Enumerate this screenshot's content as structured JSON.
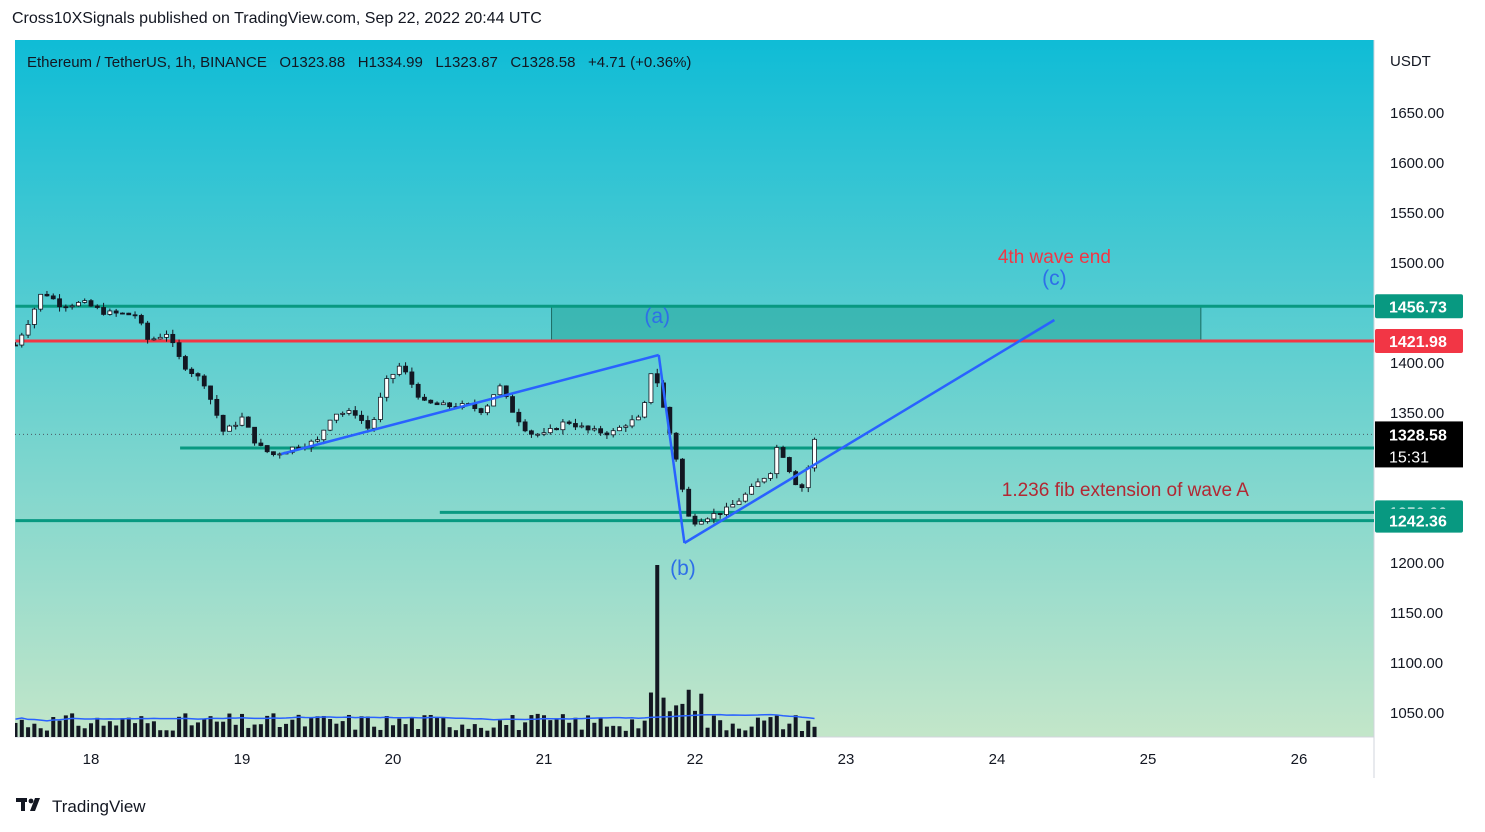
{
  "header": {
    "caption": "Cross10XSignals published on TradingView.com, Sep 22, 2022 20:44 UTC"
  },
  "legend": {
    "symbol": "Ethereum / TetherUS, 1h, BINANCE",
    "open": "O1323.88",
    "high": "H1334.99",
    "low": "L1323.87",
    "close": "C1328.58",
    "change": "+4.71 (+0.36%)"
  },
  "footer": {
    "brand": "TradingView",
    "logo_icon": "tradingview-logo-icon"
  },
  "colors": {
    "bg_top": "#0fbcd6",
    "bg_bottom": "#c3e6c9",
    "up_candle": "#ffffff",
    "down_candle": "#131722",
    "trend_line": "#2962ff",
    "support_line": "#089981",
    "resistance_line": "#f23645",
    "box_fill": "#26a69a",
    "fib_text": "#b22833",
    "wave_text": "#2e6fe8",
    "end_text": "#f23645"
  },
  "chart_data": {
    "type": "candlestick",
    "symbol": "Ethereum / TetherUS",
    "interval": "1h",
    "exchange": "BINANCE",
    "price_axis_unit": "USDT",
    "price_ticks": [
      "1650.00",
      "1600.00",
      "1550.00",
      "1500.00",
      "1400.00",
      "1350.00",
      "1200.00",
      "1150.00",
      "1100.00",
      "1050.00"
    ],
    "time_ticks": [
      "18",
      "19",
      "20",
      "21",
      "22",
      "23",
      "24",
      "25",
      "26"
    ],
    "ylim": [
      1025,
      1690
    ],
    "x_range_days": [
      17.5,
      26.5
    ],
    "price_path": [
      [
        17.5,
        1418
      ],
      [
        17.58,
        1440
      ],
      [
        17.68,
        1472
      ],
      [
        17.8,
        1458
      ],
      [
        17.95,
        1460
      ],
      [
        18.1,
        1450
      ],
      [
        18.3,
        1448
      ],
      [
        18.38,
        1422
      ],
      [
        18.5,
        1430
      ],
      [
        18.6,
        1400
      ],
      [
        18.75,
        1380
      ],
      [
        18.88,
        1330
      ],
      [
        19.0,
        1345
      ],
      [
        19.1,
        1318
      ],
      [
        19.2,
        1308
      ],
      [
        19.35,
        1316
      ],
      [
        19.5,
        1322
      ],
      [
        19.6,
        1350
      ],
      [
        19.75,
        1350
      ],
      [
        19.85,
        1332
      ],
      [
        19.95,
        1380
      ],
      [
        20.05,
        1398
      ],
      [
        20.2,
        1360
      ],
      [
        20.35,
        1357
      ],
      [
        20.5,
        1357
      ],
      [
        20.6,
        1352
      ],
      [
        20.7,
        1378
      ],
      [
        20.8,
        1350
      ],
      [
        20.9,
        1330
      ],
      [
        21.0,
        1328
      ],
      [
        21.15,
        1342
      ],
      [
        21.3,
        1332
      ],
      [
        21.45,
        1330
      ],
      [
        21.55,
        1340
      ],
      [
        21.65,
        1345
      ],
      [
        21.72,
        1400
      ],
      [
        21.78,
        1362
      ],
      [
        21.85,
        1320
      ],
      [
        21.9,
        1290
      ],
      [
        21.93,
        1260
      ],
      [
        21.97,
        1240
      ],
      [
        22.05,
        1245
      ],
      [
        22.2,
        1252
      ],
      [
        22.35,
        1270
      ],
      [
        22.45,
        1285
      ],
      [
        22.5,
        1292
      ],
      [
        22.55,
        1320
      ],
      [
        22.6,
        1302
      ],
      [
        22.65,
        1285
      ],
      [
        22.7,
        1272
      ],
      [
        22.76,
        1300
      ],
      [
        22.8,
        1328.58
      ]
    ],
    "last_bar": {
      "open": 1323.88,
      "high": 1334.99,
      "low": 1323.87,
      "close": 1328.58,
      "change": 4.71,
      "change_pct": 0.36
    },
    "volume_profile_note": "volume bars along bottom with spike near day 21.75",
    "horizontal_levels": [
      {
        "price": 1456.73,
        "label": "1456.73",
        "kind": "support",
        "start_day": 17.5
      },
      {
        "price": 1421.98,
        "label": "1421.98",
        "kind": "resistance",
        "start_day": 17.5
      },
      {
        "price": 1315.01,
        "label": "1315.01",
        "kind": "support",
        "start_day": 18.59
      },
      {
        "price": 1250.66,
        "label": "1250.66",
        "kind": "support",
        "start_day": 20.31
      },
      {
        "price": 1242.36,
        "label": "1242.36",
        "kind": "support",
        "start_day": 17.5
      }
    ],
    "current_price_label": {
      "price": "1328.58",
      "countdown": "15:31"
    },
    "zone": {
      "from_day": 21.05,
      "to_day": 25.35,
      "price_low": 1421.98,
      "price_high": 1456.73
    },
    "wave_lines": [
      {
        "points": [
          [
            19.26,
            1309
          ],
          [
            21.76,
            1408
          ]
        ]
      },
      {
        "points": [
          [
            21.76,
            1408
          ],
          [
            21.93,
            1220
          ]
        ]
      },
      {
        "points": [
          [
            21.93,
            1220
          ],
          [
            24.38,
            1443
          ]
        ]
      }
    ],
    "annotations": [
      {
        "text": "(a)",
        "day": 21.75,
        "price": 1440,
        "color": "wave"
      },
      {
        "text": "(b)",
        "day": 21.92,
        "price": 1188,
        "color": "wave"
      },
      {
        "text": "(c)",
        "day": 24.38,
        "price": 1478,
        "color": "wave"
      },
      {
        "text": "4th wave end",
        "day": 24.38,
        "price": 1500,
        "color": "end"
      },
      {
        "text": "1.236 fib extension of wave A",
        "day": 24.85,
        "price": 1267,
        "color": "fib"
      }
    ]
  }
}
